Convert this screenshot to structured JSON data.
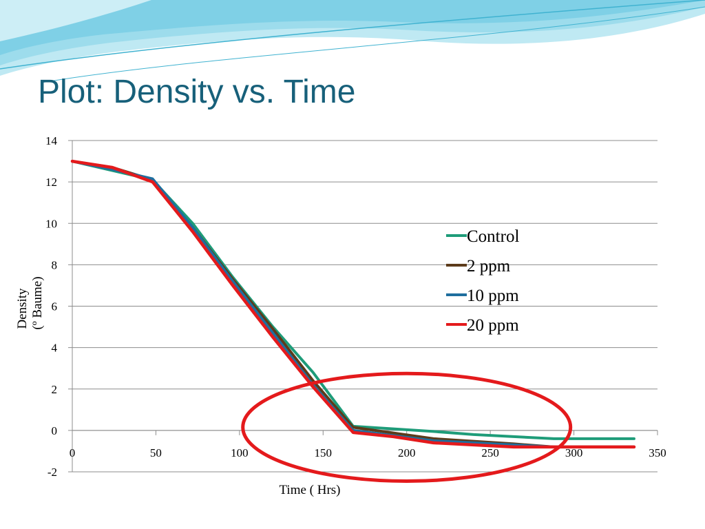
{
  "slide": {
    "title": "Plot: Density vs. Time",
    "theme_colors": {
      "title": "#17607A",
      "wave_light": "#BFE9F3",
      "wave_mid": "#7FD0E6",
      "wave_dark": "#3FB2D0"
    }
  },
  "chart_data": {
    "type": "line",
    "xlabel": "Time ( Hrs)",
    "ylabel_line1": "Density",
    "ylabel_line2": "(º Baume)",
    "xlim": [
      0,
      350
    ],
    "ylim": [
      -2,
      14
    ],
    "x_ticks": [
      0,
      50,
      100,
      150,
      200,
      250,
      300,
      350
    ],
    "y_ticks": [
      -2,
      0,
      2,
      4,
      6,
      8,
      10,
      12,
      14
    ],
    "grid": true,
    "legend_position": "right",
    "series": [
      {
        "name": "Control",
        "color": "#1E9C79",
        "x": [
          0,
          48,
          72,
          96,
          120,
          144,
          168,
          216,
          240,
          288,
          336
        ],
        "y": [
          13.0,
          12.1,
          10.0,
          7.4,
          5.0,
          2.8,
          0.2,
          -0.05,
          -0.2,
          -0.4,
          -0.4
        ]
      },
      {
        "name": "2 ppm",
        "color": "#5C3B1A",
        "x": [
          0,
          24,
          48,
          72,
          96,
          120,
          144,
          168,
          216,
          264,
          288,
          336
        ],
        "y": [
          13.0,
          12.7,
          12.1,
          9.8,
          7.3,
          4.9,
          2.4,
          0.15,
          -0.4,
          -0.65,
          -0.8,
          -0.8
        ]
      },
      {
        "name": "10 ppm",
        "color": "#1F6E9E",
        "x": [
          0,
          24,
          48,
          72,
          96,
          120,
          144,
          168,
          216,
          264,
          288,
          336
        ],
        "y": [
          13.0,
          12.6,
          12.15,
          9.8,
          7.2,
          4.7,
          2.2,
          0.0,
          -0.5,
          -0.7,
          -0.8,
          -0.8
        ]
      },
      {
        "name": "20 ppm",
        "color": "#E41A1C",
        "x": [
          0,
          24,
          48,
          72,
          96,
          120,
          144,
          168,
          192,
          216,
          264,
          288,
          336
        ],
        "y": [
          13.0,
          12.7,
          12.0,
          9.6,
          7.0,
          4.5,
          2.1,
          -0.1,
          -0.3,
          -0.6,
          -0.8,
          -0.8,
          -0.8
        ]
      }
    ],
    "annotation": {
      "shape": "ellipse",
      "color": "#E41A1C",
      "cx": 200,
      "cy": 0.15,
      "rx": 98,
      "ry": 2.6
    }
  }
}
